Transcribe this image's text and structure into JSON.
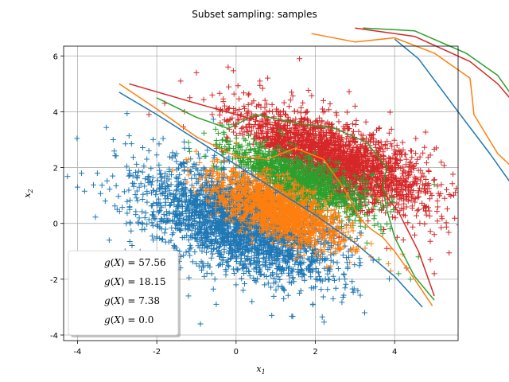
{
  "chart_data": {
    "type": "scatter",
    "title": "Subset sampling: samples",
    "xlabel": "x",
    "xlabel_sub": "1",
    "ylabel": "x",
    "ylabel_sub": "2",
    "xlim": [
      -4.35,
      5.6
    ],
    "ylim": [
      -4.2,
      6.35
    ],
    "xticks": [
      -4,
      -2,
      0,
      2,
      4
    ],
    "yticks": [
      -4,
      -2,
      0,
      2,
      4,
      6
    ],
    "grid": true,
    "legend_position": "lower-left",
    "marker": "+",
    "series": [
      {
        "name": "g(X) = 57.56",
        "color": "#1f77b4",
        "points": [
          [
            -4.0,
            1.3
          ],
          [
            -3.9,
            1.8
          ],
          [
            -3.5,
            1.8
          ],
          [
            -3.3,
            0.8
          ],
          [
            -3.2,
            -0.6
          ],
          [
            -3.1,
            3.0
          ],
          [
            -3.0,
            0.5
          ],
          [
            -2.8,
            -1.0
          ],
          [
            -2.6,
            1.7
          ],
          [
            -2.4,
            -1.2
          ],
          [
            -2.3,
            0.2
          ],
          [
            -2.2,
            2.6
          ],
          [
            -2.0,
            -1.8
          ],
          [
            -1.8,
            1.0
          ],
          [
            -1.6,
            -2.3
          ],
          [
            -1.5,
            2.5
          ],
          [
            -1.3,
            -0.5
          ],
          [
            -1.2,
            -2.6
          ],
          [
            -1.0,
            1.6
          ],
          [
            -0.9,
            -3.6
          ],
          [
            -0.8,
            -1.9
          ],
          [
            -0.6,
            0.3
          ],
          [
            -0.5,
            -2.9
          ],
          [
            -0.3,
            2.2
          ],
          [
            -0.2,
            -1.3
          ],
          [
            0.0,
            -2.2
          ],
          [
            0.2,
            0.9
          ],
          [
            0.4,
            -2.8
          ],
          [
            0.6,
            -1.6
          ],
          [
            0.9,
            -3.3
          ],
          [
            1.0,
            1.1
          ],
          [
            1.2,
            -2.7
          ],
          [
            1.4,
            -0.4
          ],
          [
            1.6,
            -2.5
          ],
          [
            1.8,
            0.6
          ],
          [
            2.1,
            -1.9
          ],
          [
            2.4,
            -0.8
          ],
          [
            2.6,
            -2.0
          ],
          [
            2.8,
            -1.4
          ],
          [
            -1.0,
            -0.4
          ],
          [
            0.5,
            0.5
          ],
          [
            -0.4,
            1.2
          ],
          [
            1.1,
            -1.1
          ],
          [
            -1.7,
            0.1
          ]
        ]
      },
      {
        "name": "g(X) = 18.15",
        "color": "#ff7f0e",
        "points": [
          [
            -0.6,
            1.7
          ],
          [
            -0.3,
            0.9
          ],
          [
            0.0,
            2.1
          ],
          [
            0.2,
            0.3
          ],
          [
            0.5,
            1.5
          ],
          [
            0.7,
            -0.2
          ],
          [
            0.9,
            0.9
          ],
          [
            1.1,
            -0.5
          ],
          [
            1.3,
            1.8
          ],
          [
            1.5,
            0.2
          ],
          [
            1.7,
            1.2
          ],
          [
            1.8,
            -0.8
          ],
          [
            2.0,
            0.7
          ],
          [
            2.2,
            -0.4
          ],
          [
            2.4,
            1.0
          ],
          [
            2.6,
            -0.9
          ],
          [
            2.8,
            0.2
          ],
          [
            3.0,
            -1.0
          ],
          [
            3.4,
            -1.2
          ],
          [
            3.9,
            -1.7
          ],
          [
            4.2,
            -1.1
          ],
          [
            0.4,
            -0.7
          ],
          [
            1.0,
            0.4
          ]
        ]
      },
      {
        "name": "g(X) = 7.38",
        "color": "#2ca02c",
        "points": [
          [
            -1.2,
            2.9
          ],
          [
            -0.8,
            2.4
          ],
          [
            -0.3,
            3.2
          ],
          [
            0.1,
            2.5
          ],
          [
            0.5,
            2.9
          ],
          [
            0.9,
            2.0
          ],
          [
            1.2,
            2.6
          ],
          [
            1.6,
            1.5
          ],
          [
            1.9,
            2.3
          ],
          [
            2.2,
            1.2
          ],
          [
            2.4,
            1.9
          ],
          [
            2.6,
            0.6
          ],
          [
            2.8,
            1.4
          ],
          [
            3.0,
            0.1
          ],
          [
            3.3,
            -0.7
          ],
          [
            3.6,
            -1.3
          ],
          [
            4.1,
            -1.8
          ],
          [
            4.4,
            -2.0
          ],
          [
            4.6,
            -1.2
          ],
          [
            5.0,
            1.4
          ],
          [
            2.0,
            0.5
          ],
          [
            1.5,
            2.8
          ],
          [
            3.1,
            1.0
          ]
        ]
      },
      {
        "name": "g(X) = 0.0",
        "color": "#d62728",
        "points": [
          [
            -2.2,
            3.9
          ],
          [
            -1.8,
            4.3
          ],
          [
            -1.4,
            5.1
          ],
          [
            -1.0,
            5.4
          ],
          [
            -0.6,
            4.6
          ],
          [
            -0.2,
            5.6
          ],
          [
            0.2,
            4.2
          ],
          [
            0.6,
            5.1
          ],
          [
            1.0,
            3.6
          ],
          [
            1.4,
            4.7
          ],
          [
            1.6,
            5.9
          ],
          [
            1.8,
            4.0
          ],
          [
            2.2,
            4.4
          ],
          [
            2.6,
            3.3
          ],
          [
            3.0,
            4.2
          ],
          [
            3.3,
            2.6
          ],
          [
            3.6,
            3.4
          ],
          [
            3.9,
            2.0
          ],
          [
            4.2,
            2.9
          ],
          [
            4.4,
            1.2
          ],
          [
            4.6,
            1.9
          ],
          [
            4.8,
            0.3
          ],
          [
            5.0,
            -0.4
          ],
          [
            4.9,
            -1.3
          ],
          [
            5.0,
            -1.8
          ],
          [
            4.3,
            -1.6
          ],
          [
            3.8,
            -0.9
          ],
          [
            3.3,
            0.4
          ],
          [
            3.1,
            1.7
          ],
          [
            2.7,
            2.6
          ],
          [
            2.2,
            3.1
          ],
          [
            0.8,
            3.1
          ],
          [
            -0.4,
            3.6
          ],
          [
            -1.3,
            4.0
          ],
          [
            4.4,
            2.2
          ],
          [
            3.7,
            1.0
          ],
          [
            2.6,
            -0.5
          ],
          [
            1.5,
            3.4
          ],
          [
            0.3,
            3.3
          ],
          [
            -0.6,
            3.9
          ]
        ]
      }
    ],
    "lines": [
      {
        "color": "#1f77b4",
        "points": [
          [
            -2.95,
            4.7
          ],
          [
            -2,
            3.9
          ],
          [
            -1,
            3.0
          ],
          [
            0,
            2.1
          ],
          [
            1,
            1.2
          ],
          [
            2,
            0.3
          ],
          [
            3,
            -0.7
          ],
          [
            4,
            -1.9
          ],
          [
            4.7,
            -3.0
          ]
        ]
      },
      {
        "color": "#ff7f0e",
        "points": [
          [
            -2.95,
            5.0
          ],
          [
            -2,
            4.1
          ],
          [
            -1,
            3.1
          ],
          [
            0,
            2.4
          ],
          [
            0.8,
            2.3
          ],
          [
            1.5,
            2.7
          ],
          [
            2.2,
            2.3
          ],
          [
            2.7,
            1.3
          ],
          [
            2.9,
            0.8
          ],
          [
            3.1,
            0.2
          ],
          [
            3.4,
            -0.2
          ],
          [
            3.7,
            -0.5
          ],
          [
            4.0,
            -1.0
          ],
          [
            4.5,
            -2.0
          ],
          [
            4.95,
            -2.95
          ]
        ]
      },
      {
        "color": "#2ca02c",
        "points": [
          [
            -2.0,
            4.5
          ],
          [
            -1,
            3.8
          ],
          [
            -0.2,
            3.4
          ],
          [
            0.5,
            3.9
          ],
          [
            1.5,
            3.6
          ],
          [
            2.5,
            3.4
          ],
          [
            3.3,
            2.9
          ],
          [
            3.8,
            2.0
          ],
          [
            3.7,
            1.3
          ],
          [
            3.8,
            0.5
          ],
          [
            4.0,
            -0.5
          ],
          [
            4.5,
            -1.9
          ],
          [
            5.0,
            -2.75
          ]
        ]
      },
      {
        "color": "#d62728",
        "points": [
          [
            -2.7,
            5.0
          ],
          [
            -1,
            4.3
          ],
          [
            1,
            3.5
          ],
          [
            2.6,
            2.6
          ],
          [
            3.5,
            1.5
          ],
          [
            4.1,
            0.4
          ],
          [
            4.6,
            -1.0
          ],
          [
            5.0,
            -2.6
          ]
        ]
      }
    ],
    "offplot_lines": [
      {
        "color": "#1f77b4",
        "points": [
          [
            4.0,
            6.6
          ],
          [
            4.6,
            5.9
          ],
          [
            5.6,
            4.0
          ],
          [
            6.4,
            2.5
          ],
          [
            6.9,
            1.5
          ]
        ]
      },
      {
        "color": "#ff7f0e",
        "points": [
          [
            1.9,
            6.8
          ],
          [
            3.0,
            6.5
          ],
          [
            4.0,
            6.65
          ],
          [
            5.0,
            6.1
          ],
          [
            5.9,
            5.2
          ],
          [
            5.95,
            4.6
          ],
          [
            6.0,
            3.9
          ],
          [
            6.3,
            3.2
          ],
          [
            6.6,
            2.5
          ],
          [
            6.9,
            2.1
          ]
        ]
      },
      {
        "color": "#2ca02c",
        "points": [
          [
            3.2,
            7.0
          ],
          [
            4.5,
            6.9
          ],
          [
            5.8,
            6.1
          ],
          [
            6.6,
            5.3
          ],
          [
            6.9,
            4.7
          ]
        ]
      },
      {
        "color": "#d62728",
        "points": [
          [
            3.0,
            7.0
          ],
          [
            4.5,
            6.7
          ],
          [
            5.9,
            5.8
          ],
          [
            6.6,
            5.0
          ],
          [
            6.9,
            4.5
          ]
        ]
      }
    ]
  }
}
